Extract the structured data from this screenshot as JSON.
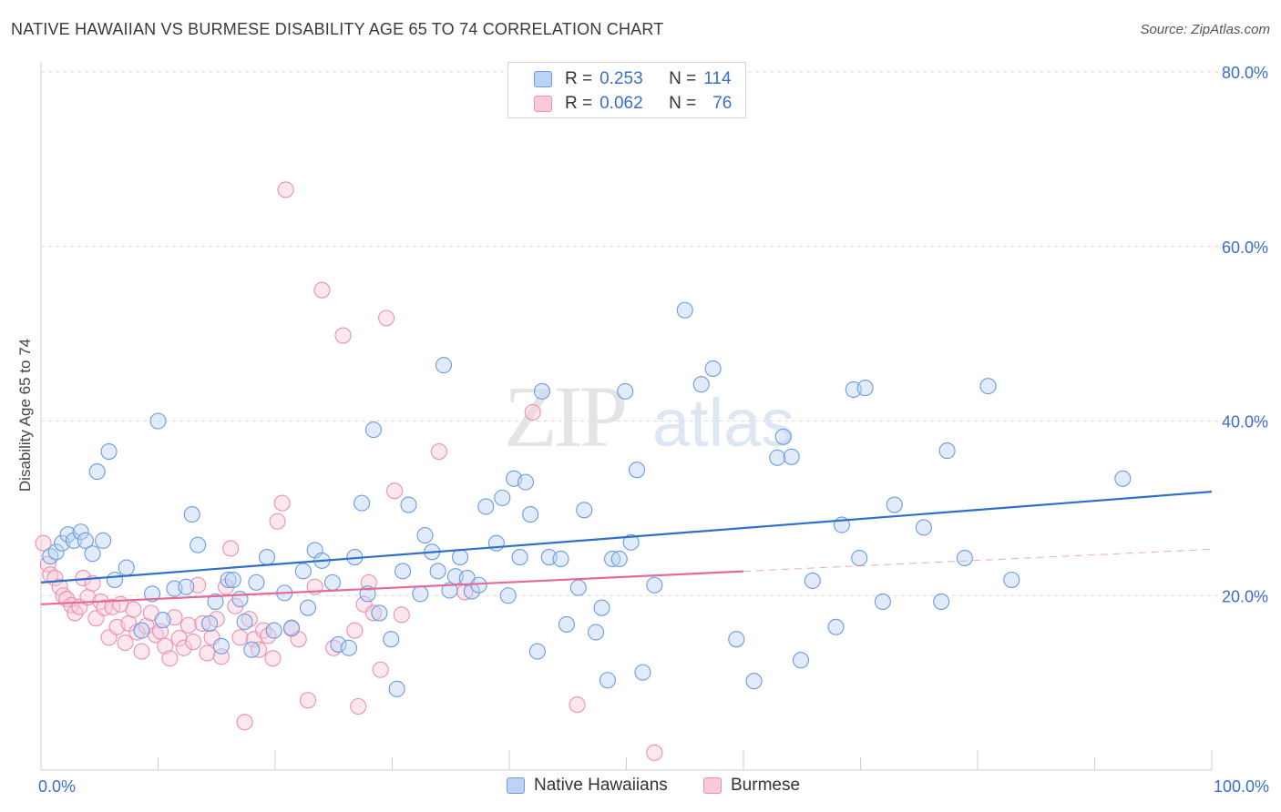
{
  "title": "NATIVE HAWAIIAN VS BURMESE DISABILITY AGE 65 TO 74 CORRELATION CHART",
  "source": "Source: ZipAtlas.com",
  "watermark": {
    "zip": "ZIP",
    "atlas": "atlas"
  },
  "legend": {
    "rows": [
      {
        "r_label": "R =",
        "r_value": "0.253",
        "n_label": "N =",
        "n_value": "114"
      },
      {
        "r_label": "R =",
        "r_value": "0.062",
        "n_label": "N =",
        "n_value": "76"
      }
    ]
  },
  "colors": {
    "blue_fill": "#bcd3f5",
    "blue_stroke": "#6c9be0",
    "blue_line": "#2f6fcb",
    "pink_fill": "#fbc9da",
    "pink_stroke": "#ec8fb0",
    "pink_line": "#e5699a",
    "axis_text": "#3b6fc7"
  },
  "chart_data": {
    "type": "scatter",
    "xlabel": "",
    "ylabel": "Disability Age 65 to 74",
    "xlim": [
      0,
      100
    ],
    "ylim": [
      0,
      80
    ],
    "x_tick_labels": [
      "0.0%",
      "100.0%"
    ],
    "y_ticks": [
      20,
      40,
      60,
      80
    ],
    "y_tick_labels": [
      "20.0%",
      "40.0%",
      "60.0%",
      "80.0%"
    ],
    "grid": true,
    "legend_position": "bottom",
    "series": [
      {
        "name": "Native Hawaiians",
        "trend": {
          "x": [
            0,
            100
          ],
          "y": [
            21.5,
            31.9
          ],
          "dashed_from": null
        },
        "points": [
          [
            0.8,
            24.5
          ],
          [
            1.3,
            25.0
          ],
          [
            1.8,
            26.0
          ],
          [
            2.3,
            27.0
          ],
          [
            2.8,
            26.3
          ],
          [
            3.4,
            27.3
          ],
          [
            3.8,
            26.3
          ],
          [
            4.4,
            24.8
          ],
          [
            5.3,
            26.3
          ],
          [
            5.8,
            36.5
          ],
          [
            4.8,
            34.2
          ],
          [
            6.3,
            21.8
          ],
          [
            7.3,
            23.2
          ],
          [
            8.6,
            16.0
          ],
          [
            9.5,
            20.2
          ],
          [
            10.0,
            40.0
          ],
          [
            10.4,
            17.2
          ],
          [
            11.4,
            20.8
          ],
          [
            12.4,
            21.0
          ],
          [
            12.9,
            29.3
          ],
          [
            13.4,
            25.8
          ],
          [
            14.4,
            16.8
          ],
          [
            14.9,
            19.3
          ],
          [
            15.4,
            14.2
          ],
          [
            16.0,
            21.8
          ],
          [
            16.4,
            21.8
          ],
          [
            17.0,
            19.6
          ],
          [
            17.4,
            17.0
          ],
          [
            18.0,
            13.8
          ],
          [
            18.4,
            21.5
          ],
          [
            19.3,
            24.4
          ],
          [
            19.9,
            16.0
          ],
          [
            20.8,
            20.3
          ],
          [
            21.4,
            16.3
          ],
          [
            22.4,
            22.8
          ],
          [
            22.8,
            18.6
          ],
          [
            23.4,
            25.2
          ],
          [
            24.0,
            24.0
          ],
          [
            24.9,
            21.5
          ],
          [
            25.4,
            14.4
          ],
          [
            26.3,
            14.0
          ],
          [
            26.8,
            24.4
          ],
          [
            27.4,
            30.6
          ],
          [
            27.9,
            20.2
          ],
          [
            28.4,
            39.0
          ],
          [
            28.9,
            18.0
          ],
          [
            29.9,
            15.0
          ],
          [
            30.4,
            9.3
          ],
          [
            30.9,
            22.8
          ],
          [
            31.4,
            30.4
          ],
          [
            32.4,
            20.2
          ],
          [
            32.8,
            26.9
          ],
          [
            33.4,
            25.0
          ],
          [
            33.9,
            22.8
          ],
          [
            34.4,
            46.4
          ],
          [
            34.9,
            20.6
          ],
          [
            35.4,
            22.2
          ],
          [
            35.8,
            24.4
          ],
          [
            36.4,
            22.0
          ],
          [
            36.8,
            20.5
          ],
          [
            37.4,
            21.2
          ],
          [
            38.0,
            30.2
          ],
          [
            38.9,
            26.0
          ],
          [
            39.4,
            31.2
          ],
          [
            39.9,
            20.0
          ],
          [
            40.4,
            33.4
          ],
          [
            40.9,
            24.4
          ],
          [
            41.4,
            33.0
          ],
          [
            41.8,
            29.3
          ],
          [
            42.4,
            13.6
          ],
          [
            42.8,
            43.4
          ],
          [
            43.4,
            24.4
          ],
          [
            44.4,
            24.2
          ],
          [
            44.9,
            16.7
          ],
          [
            45.9,
            20.9
          ],
          [
            46.4,
            29.8
          ],
          [
            47.4,
            15.8
          ],
          [
            47.9,
            18.6
          ],
          [
            48.4,
            10.3
          ],
          [
            48.8,
            24.2
          ],
          [
            49.4,
            24.2
          ],
          [
            49.9,
            43.4
          ],
          [
            50.4,
            26.1
          ],
          [
            50.9,
            34.4
          ],
          [
            51.4,
            11.2
          ],
          [
            52.4,
            21.2
          ],
          [
            55.0,
            52.7
          ],
          [
            56.4,
            44.2
          ],
          [
            57.4,
            46.0
          ],
          [
            59.4,
            15.0
          ],
          [
            60.9,
            10.2
          ],
          [
            62.9,
            35.8
          ],
          [
            63.4,
            38.2
          ],
          [
            64.1,
            35.9
          ],
          [
            64.9,
            12.6
          ],
          [
            65.9,
            21.7
          ],
          [
            67.9,
            16.4
          ],
          [
            68.4,
            28.1
          ],
          [
            69.4,
            43.6
          ],
          [
            69.9,
            24.3
          ],
          [
            70.4,
            43.8
          ],
          [
            71.9,
            19.3
          ],
          [
            72.9,
            30.4
          ],
          [
            75.4,
            27.8
          ],
          [
            76.9,
            19.3
          ],
          [
            77.4,
            36.6
          ],
          [
            78.9,
            24.3
          ],
          [
            80.9,
            44.0
          ],
          [
            82.9,
            21.8
          ],
          [
            92.4,
            33.4
          ]
        ]
      },
      {
        "name": "Burmese",
        "trend": {
          "x": [
            0,
            100
          ],
          "y": [
            19.0,
            25.3
          ],
          "dashed_from": 60.0
        },
        "points": [
          [
            0.2,
            26.0
          ],
          [
            0.6,
            23.6
          ],
          [
            0.8,
            22.4
          ],
          [
            1.2,
            22.0
          ],
          [
            1.6,
            21.0
          ],
          [
            1.9,
            20.0
          ],
          [
            2.2,
            19.6
          ],
          [
            2.6,
            18.9
          ],
          [
            2.9,
            18.0
          ],
          [
            3.3,
            18.7
          ],
          [
            3.6,
            22.0
          ],
          [
            4.0,
            19.8
          ],
          [
            4.4,
            21.4
          ],
          [
            4.7,
            17.4
          ],
          [
            5.1,
            19.3
          ],
          [
            5.4,
            18.6
          ],
          [
            5.8,
            15.2
          ],
          [
            6.1,
            18.7
          ],
          [
            6.5,
            16.4
          ],
          [
            6.8,
            19.0
          ],
          [
            7.2,
            14.6
          ],
          [
            7.5,
            16.8
          ],
          [
            7.9,
            18.4
          ],
          [
            8.2,
            15.8
          ],
          [
            8.6,
            13.6
          ],
          [
            9.0,
            16.5
          ],
          [
            9.4,
            18.0
          ],
          [
            9.8,
            15.5
          ],
          [
            10.2,
            15.9
          ],
          [
            10.6,
            14.2
          ],
          [
            11.0,
            12.8
          ],
          [
            11.4,
            17.5
          ],
          [
            11.8,
            15.1
          ],
          [
            12.2,
            14.0
          ],
          [
            12.6,
            16.6
          ],
          [
            13.0,
            14.7
          ],
          [
            13.4,
            21.2
          ],
          [
            13.8,
            16.8
          ],
          [
            14.2,
            13.4
          ],
          [
            14.6,
            15.2
          ],
          [
            15.0,
            17.3
          ],
          [
            15.4,
            13.0
          ],
          [
            15.8,
            21.0
          ],
          [
            16.2,
            25.4
          ],
          [
            16.6,
            18.8
          ],
          [
            17.0,
            15.2
          ],
          [
            17.4,
            5.5
          ],
          [
            17.8,
            17.3
          ],
          [
            18.2,
            15.0
          ],
          [
            18.6,
            13.8
          ],
          [
            19.0,
            16.0
          ],
          [
            19.4,
            15.4
          ],
          [
            19.8,
            12.8
          ],
          [
            20.2,
            28.5
          ],
          [
            20.6,
            30.6
          ],
          [
            20.9,
            66.5
          ],
          [
            21.4,
            16.2
          ],
          [
            22.0,
            15.0
          ],
          [
            22.8,
            8.0
          ],
          [
            23.4,
            21.0
          ],
          [
            24.0,
            55.0
          ],
          [
            25.0,
            14.0
          ],
          [
            25.8,
            49.8
          ],
          [
            26.8,
            16.0
          ],
          [
            27.1,
            7.3
          ],
          [
            27.6,
            19.0
          ],
          [
            28.0,
            21.5
          ],
          [
            28.4,
            18.0
          ],
          [
            29.0,
            11.5
          ],
          [
            29.5,
            51.8
          ],
          [
            30.2,
            32.0
          ],
          [
            30.8,
            17.8
          ],
          [
            34.0,
            36.5
          ],
          [
            36.2,
            20.4
          ],
          [
            42.0,
            41.0
          ],
          [
            45.8,
            7.5
          ],
          [
            52.4,
            2.0
          ]
        ]
      }
    ]
  }
}
